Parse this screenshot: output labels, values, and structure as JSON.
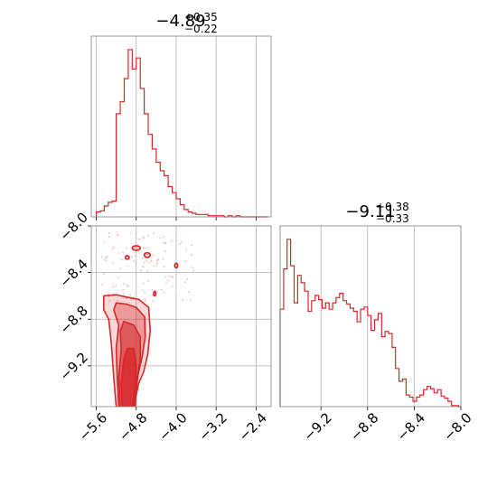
{
  "chart_data": [
    {
      "type": "histogram",
      "panel": "top-left",
      "title": {
        "base": "−4.89",
        "sup": "+0.35",
        "sub": "−0.22"
      },
      "xlim": [
        -5.7,
        -2.1
      ],
      "x_ticks": [
        -5.6,
        -4.8,
        -4.0,
        -3.2,
        -2.4
      ],
      "grid": true,
      "bin_edges": [
        -5.6,
        -5.52,
        -5.44,
        -5.36,
        -5.28,
        -5.2,
        -5.12,
        -5.04,
        -4.96,
        -4.88,
        -4.8,
        -4.72,
        -4.64,
        -4.56,
        -4.48,
        -4.4,
        -4.32,
        -4.24,
        -4.16,
        -4.08,
        -4.0,
        -3.92,
        -3.84,
        -3.76,
        -3.68,
        -3.6,
        -3.52,
        -3.44,
        -3.36,
        -3.28,
        -3.2,
        -3.12,
        -3.04,
        -2.96,
        -2.88,
        -2.8,
        -2.72,
        -2.64,
        -2.56,
        -2.48,
        -2.4,
        -2.32,
        -2.24,
        -2.16
      ],
      "counts": [
        0.4,
        0.5,
        0.9,
        1.2,
        1.3,
        8.5,
        9.5,
        11.4,
        13.8,
        12.2,
        13.1,
        10.6,
        8.5,
        6.8,
        5.6,
        4.5,
        3.8,
        3.4,
        2.5,
        2.0,
        1.5,
        1.0,
        0.6,
        0.4,
        0.3,
        0.2,
        0.2,
        0.2,
        0.1,
        0.1,
        0.1,
        0.1,
        0.0,
        0.1,
        0.0,
        0.1,
        0.0,
        0.0,
        0.0,
        0.0,
        0.0,
        0.0,
        0.0
      ],
      "color": "#d62728"
    },
    {
      "type": "contour",
      "panel": "bottom-left",
      "xlim": [
        -5.7,
        -2.1
      ],
      "ylim": [
        -9.55,
        -8.0
      ],
      "x_ticks": [
        -5.6,
        -4.8,
        -4.0,
        -3.2,
        -2.4
      ],
      "y_ticks": [
        -8.0,
        -8.4,
        -8.8,
        -9.2
      ],
      "grid": true,
      "color": "#d62728",
      "levels": [
        {
          "fill": 0.18,
          "points": [
            [
              -5.45,
              -8.6
            ],
            [
              -5.2,
              -8.59
            ],
            [
              -5.0,
              -8.61
            ],
            [
              -4.75,
              -8.63
            ],
            [
              -4.55,
              -8.7
            ],
            [
              -4.52,
              -8.9
            ],
            [
              -4.57,
              -9.1
            ],
            [
              -4.65,
              -9.25
            ],
            [
              -4.75,
              -9.35
            ],
            [
              -4.85,
              -9.55
            ],
            [
              -5.2,
              -9.55
            ],
            [
              -5.25,
              -9.3
            ],
            [
              -5.3,
              -9.0
            ],
            [
              -5.35,
              -8.8
            ],
            [
              -5.45,
              -8.72
            ]
          ]
        },
        {
          "fill": 0.35,
          "points": [
            [
              -5.2,
              -8.66
            ],
            [
              -5.0,
              -8.67
            ],
            [
              -4.8,
              -8.7
            ],
            [
              -4.63,
              -8.78
            ],
            [
              -4.62,
              -8.95
            ],
            [
              -4.68,
              -9.12
            ],
            [
              -4.76,
              -9.27
            ],
            [
              -4.85,
              -9.55
            ],
            [
              -5.15,
              -9.55
            ],
            [
              -5.18,
              -9.3
            ],
            [
              -5.2,
              -9.05
            ],
            [
              -5.15,
              -8.85
            ],
            [
              -5.25,
              -8.72
            ]
          ]
        },
        {
          "fill": 0.55,
          "points": [
            [
              -5.05,
              -8.82
            ],
            [
              -4.85,
              -8.85
            ],
            [
              -4.72,
              -8.95
            ],
            [
              -4.72,
              -9.15
            ],
            [
              -4.78,
              -9.3
            ],
            [
              -4.82,
              -9.55
            ],
            [
              -5.12,
              -9.55
            ],
            [
              -5.15,
              -9.3
            ],
            [
              -5.1,
              -9.05
            ],
            [
              -5.12,
              -8.9
            ]
          ]
        },
        {
          "fill": 0.75,
          "points": [
            [
              -4.98,
              -9.05
            ],
            [
              -4.85,
              -9.05
            ],
            [
              -4.8,
              -9.2
            ],
            [
              -4.82,
              -9.4
            ],
            [
              -4.88,
              -9.55
            ],
            [
              -5.08,
              -9.55
            ],
            [
              -5.1,
              -9.35
            ],
            [
              -5.05,
              -9.15
            ]
          ]
        }
      ],
      "islands": [
        {
          "cx": -4.8,
          "cy": -8.19,
          "rx": 0.08,
          "ry": 0.02
        },
        {
          "cx": -4.58,
          "cy": -8.25,
          "rx": 0.06,
          "ry": 0.02
        },
        {
          "cx": -4.98,
          "cy": -8.27,
          "rx": 0.04,
          "ry": 0.015
        },
        {
          "cx": -4.0,
          "cy": -8.34,
          "rx": 0.03,
          "ry": 0.02
        },
        {
          "cx": -4.43,
          "cy": -8.58,
          "rx": 0.02,
          "ry": 0.02
        }
      ]
    },
    {
      "type": "histogram",
      "panel": "bottom-right",
      "title": {
        "base": "−9.11",
        "sup": "+0.38",
        "sub": "−0.33"
      },
      "xlim": [
        -9.55,
        -8.0
      ],
      "x_ticks": [
        -9.2,
        -8.8,
        -8.4,
        -8.0
      ],
      "grid": true,
      "bin_edges": [
        -9.55,
        -9.52,
        -9.49,
        -9.46,
        -9.43,
        -9.4,
        -9.37,
        -9.34,
        -9.31,
        -9.28,
        -9.25,
        -9.22,
        -9.19,
        -9.16,
        -9.13,
        -9.1,
        -9.07,
        -9.04,
        -9.01,
        -8.98,
        -8.95,
        -8.92,
        -8.89,
        -8.86,
        -8.83,
        -8.8,
        -8.77,
        -8.74,
        -8.71,
        -8.68,
        -8.65,
        -8.62,
        -8.59,
        -8.56,
        -8.53,
        -8.5,
        -8.47,
        -8.44,
        -8.41,
        -8.38,
        -8.35,
        -8.32,
        -8.29,
        -8.26,
        -8.23,
        -8.2,
        -8.17,
        -8.14,
        -8.11,
        -8.08,
        -8.05,
        -8.02,
        -7.99
      ],
      "counts": [
        9.2,
        13.0,
        15.8,
        13.3,
        9.8,
        12.4,
        11.7,
        10.9,
        9.0,
        10.0,
        10.5,
        10.1,
        9.3,
        9.8,
        9.2,
        9.8,
        10.3,
        10.7,
        10.0,
        9.7,
        9.3,
        9.0,
        8.0,
        9.2,
        9.4,
        8.6,
        7.2,
        8.2,
        8.8,
        6.6,
        7.1,
        6.9,
        5.6,
        3.6,
        2.4,
        2.6,
        1.1,
        0.9,
        0.5,
        0.9,
        1.1,
        1.6,
        1.9,
        1.7,
        1.3,
        1.6,
        1.0,
        0.8,
        0.5,
        0.1,
        0.1,
        0.0
      ],
      "color": "#d62728"
    }
  ]
}
